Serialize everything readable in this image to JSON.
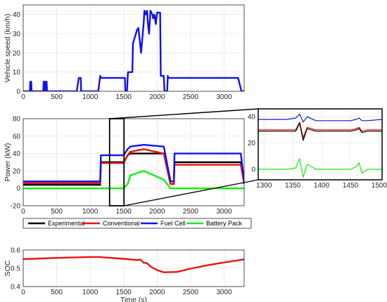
{
  "chart_data": [
    {
      "type": "line",
      "ylabel": "Vehicle speed (km/h)",
      "xlim": [
        0,
        3300
      ],
      "ylim": [
        0,
        45
      ],
      "xticks": [
        "0",
        "500",
        "1000",
        "1500",
        "2000",
        "2500",
        "3000"
      ],
      "yticks": [
        "0",
        "10",
        "20",
        "30",
        "40"
      ],
      "series": [
        {
          "color": "#1010ee",
          "x": [
            0,
            100,
            105,
            120,
            125,
            300,
            305,
            320,
            325,
            330,
            335,
            350,
            355,
            800,
            830,
            860,
            865,
            1120,
            1150,
            1160,
            1170,
            1175,
            1300,
            1400,
            1520,
            1525,
            1550,
            1560,
            1565,
            1630,
            1640,
            1700,
            1720,
            1730,
            1760,
            1800,
            1810,
            1830,
            1850,
            1860,
            1880,
            1900,
            1930,
            1940,
            1960,
            1980,
            2000,
            2030,
            2045,
            2055,
            2070,
            2100,
            2110,
            2150,
            2160,
            2165,
            2200,
            2210,
            2400,
            2500,
            2600,
            2700,
            2800,
            2900,
            3000,
            3100,
            3150,
            3200,
            3210,
            3260,
            3300
          ],
          "y": [
            0,
            0,
            5,
            5,
            0,
            0,
            5,
            5,
            0,
            0,
            5,
            5,
            0,
            0,
            7,
            7,
            0,
            0,
            8,
            7,
            7,
            7,
            7,
            7,
            7,
            0,
            0,
            7,
            10,
            10,
            25,
            32,
            33,
            30,
            20,
            36,
            42,
            40,
            42,
            36,
            30,
            42,
            40,
            38,
            40,
            35,
            41,
            41,
            41,
            8,
            8,
            8,
            0,
            0,
            8,
            7,
            7,
            7,
            7,
            7,
            7,
            7,
            7,
            7,
            7,
            7,
            7,
            7,
            7,
            0,
            0
          ]
        }
      ]
    },
    {
      "type": "line",
      "ylabel": "Power (kW)",
      "xlim": [
        0,
        3300
      ],
      "ylim": [
        -20,
        80
      ],
      "xticks": [
        "0",
        "500",
        "1000",
        "1500",
        "2000",
        "2500",
        "3000"
      ],
      "yticks": [
        "-20",
        "0",
        "20",
        "40",
        "60",
        "80"
      ],
      "legend": {
        "position": "bottom"
      },
      "series": [
        {
          "name": "Experimental",
          "color": "#000000",
          "x": [
            0,
            1150,
            1160,
            1500,
            1560,
            1600,
            1800,
            2100,
            2200,
            2250,
            2260,
            3250,
            3300
          ],
          "y": [
            4,
            4,
            30,
            30,
            38,
            40,
            40,
            40,
            5,
            5,
            30,
            30,
            5
          ]
        },
        {
          "name": "Conventional",
          "color": "#ee1111",
          "x": [
            0,
            1150,
            1160,
            1500,
            1560,
            1600,
            1800,
            2100,
            2200,
            2250,
            2260,
            3250,
            3300
          ],
          "y": [
            6,
            6,
            29,
            29,
            38,
            42,
            45,
            40,
            5,
            5,
            27,
            27,
            6
          ]
        },
        {
          "name": "Fuel Cell",
          "color": "#1111ee",
          "x": [
            0,
            1150,
            1160,
            1500,
            1560,
            1600,
            1800,
            2100,
            2200,
            2250,
            2260,
            3250,
            3300
          ],
          "y": [
            8,
            8,
            38,
            38,
            45,
            48,
            50,
            48,
            8,
            8,
            40,
            40,
            8
          ]
        },
        {
          "name": "Battery Pack",
          "color": "#11ee11",
          "x": [
            0,
            1150,
            1160,
            1500,
            1560,
            1600,
            1800,
            2100,
            2200,
            2250,
            2260,
            3250,
            3300
          ],
          "y": [
            0,
            0,
            0,
            0,
            5,
            15,
            20,
            10,
            0,
            0,
            0,
            0,
            0
          ]
        }
      ]
    },
    {
      "type": "line",
      "xlim": [
        1290,
        1505
      ],
      "ylim": [
        -8,
        46
      ],
      "xticks": [
        "1300",
        "1350",
        "1400",
        "1450",
        "1500"
      ],
      "yticks": [
        "0",
        "20",
        "40"
      ],
      "series": [
        {
          "color": "#1111ee",
          "x": [
            1290,
            1340,
            1355,
            1362,
            1368,
            1375,
            1390,
            1450,
            1460,
            1465,
            1470,
            1480,
            1505
          ],
          "y": [
            38,
            38,
            39,
            42,
            36,
            40,
            37,
            37,
            38,
            39,
            37,
            37,
            38
          ]
        },
        {
          "color": "#ee1111",
          "x": [
            1290,
            1340,
            1355,
            1362,
            1368,
            1375,
            1390,
            1450,
            1460,
            1465,
            1470,
            1480,
            1505
          ],
          "y": [
            30,
            30,
            30,
            36,
            24,
            32,
            30,
            30,
            31,
            32,
            29,
            30,
            30
          ]
        },
        {
          "color": "#000000",
          "x": [
            1290,
            1340,
            1355,
            1362,
            1368,
            1375,
            1390,
            1450,
            1460,
            1465,
            1470,
            1480,
            1505
          ],
          "y": [
            29,
            29,
            29,
            35,
            22,
            31,
            29,
            29,
            30,
            31,
            28,
            29,
            29
          ]
        },
        {
          "color": "#11ee11",
          "x": [
            1290,
            1340,
            1355,
            1362,
            1368,
            1375,
            1390,
            1450,
            1460,
            1465,
            1470,
            1480,
            1505
          ],
          "y": [
            0,
            0,
            1,
            8,
            -6,
            4,
            0,
            0,
            2,
            5,
            -3,
            0,
            0
          ]
        }
      ]
    },
    {
      "type": "line",
      "xlabel": "Time (s)",
      "ylabel": "SOC",
      "xlim": [
        0,
        3300
      ],
      "ylim": [
        0.4,
        0.6
      ],
      "xticks": [
        "0",
        "500",
        "1000",
        "1500",
        "2000",
        "2500",
        "3000"
      ],
      "yticks": [
        "0.4",
        "0.5",
        "0.6"
      ],
      "series": [
        {
          "color": "#ee1111",
          "x": [
            0,
            500,
            800,
            1000,
            1150,
            1200,
            1500,
            1560,
            1700,
            1750,
            1800,
            1850,
            1900,
            2000,
            2100,
            2300,
            2500,
            2800,
            3000,
            3300
          ],
          "y": [
            0.55,
            0.557,
            0.56,
            0.562,
            0.562,
            0.56,
            0.552,
            0.55,
            0.545,
            0.548,
            0.53,
            0.528,
            0.51,
            0.49,
            0.478,
            0.48,
            0.498,
            0.52,
            0.532,
            0.549
          ]
        }
      ]
    }
  ]
}
